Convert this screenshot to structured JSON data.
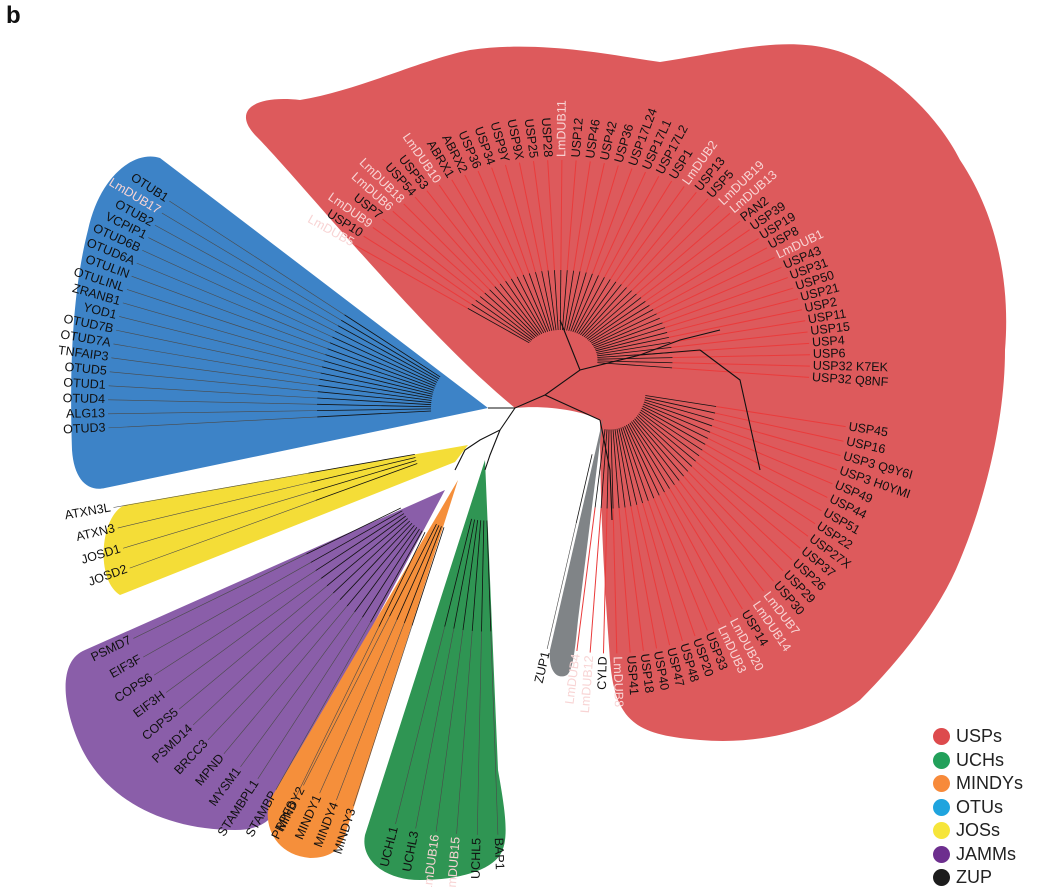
{
  "panel_label": "b",
  "colors": {
    "USPs": "#dd5a5c",
    "UCHs": "#2f9553",
    "MINDYs": "#f58f3b",
    "OTUs": "#3d83c7",
    "JOSs": "#f4dd37",
    "JAMMs": "#8a5ea9",
    "ZUP": "#808487",
    "lmdub_label": "#f8d4d4"
  },
  "legend": [
    {
      "name": "USPs",
      "color": "#dd4b4d"
    },
    {
      "name": "UCHs",
      "color": "#22a05a"
    },
    {
      "name": "MINDYs",
      "color": "#f78a3a"
    },
    {
      "name": "OTUs",
      "color": "#1fa4de"
    },
    {
      "name": "JOSs",
      "color": "#f6e53a"
    },
    {
      "name": "JAMMs",
      "color": "#6d2f8e"
    },
    {
      "name": "ZUP",
      "color": "#1c1c1c"
    }
  ],
  "groups": {
    "USPs_upper": [
      "LmDUB5",
      "USP10",
      "LmDUB9",
      "USP7",
      "LmDUB6",
      "LmDUB18",
      "USP54",
      "USP53",
      "LmDUB10",
      "ABRX1",
      "ABRX2",
      "USP36",
      "USP34",
      "USP9Y",
      "USP9X",
      "USP25",
      "USP28",
      "LmDUB11",
      "USP12",
      "USP46",
      "USP42",
      "USP36",
      "USP17L24",
      "USP17L1",
      "USP17L2",
      "USP1",
      "LmDUB2",
      "USP13",
      "USP5",
      "LmDUB19",
      "LmDUB13",
      "PAN2",
      "USP39",
      "USP19",
      "USP8",
      "LmDUB1",
      "USP43",
      "USP31",
      "USP50",
      "USP21",
      "USP2",
      "USP11",
      "USP15",
      "USP4",
      "USP6",
      "USP32 K7EK",
      "USP32 Q8NF"
    ],
    "USPs_lower": [
      "USP45",
      "USP16",
      "USP3 Q9Y6I",
      "USP3 H0YMI",
      "USP49",
      "USP44",
      "USP51",
      "USP22",
      "USP27X",
      "USP37",
      "USP26",
      "USP29",
      "USP30",
      "LmDUB7",
      "LmDUB14",
      "USP14",
      "LmDUB20",
      "LmDUB3",
      "USP33",
      "USP20",
      "USP48",
      "USP47",
      "USP40",
      "USP18",
      "USP41",
      "LmDUB8",
      "CYLD",
      "LmDUB12",
      "LmDUB4"
    ],
    "OTUs": [
      "OTUB1",
      "LmDUB17",
      "OTUB2",
      "VCPIP1",
      "OTUD6B",
      "OTUD6A",
      "OTULIN",
      "OTULINL",
      "ZRANB1",
      "YOD1",
      "OTUD7B",
      "OTUD7A",
      "TNFAIP3",
      "OTUD5",
      "OTUD1",
      "OTUD4",
      "ALG13",
      "OTUD3"
    ],
    "JOSs": [
      "ATXN3L",
      "ATXN3",
      "JOSD1",
      "JOSD2"
    ],
    "JAMMs": [
      "PSMD7",
      "EIF3F",
      "COPS6",
      "EIF3H",
      "COPS5",
      "PSMD14",
      "BRCC3",
      "MPND",
      "MYSM1",
      "STAMBPL1",
      "STAMBP",
      "PRPF8"
    ],
    "MINDYs": [
      "MINDY2",
      "MINDY1",
      "MINDY4",
      "MINDY3"
    ],
    "UCHs": [
      "UCHL1",
      "UCHL3",
      "LmDUB16",
      "LmDUB15",
      "UCHL5",
      "BAP1"
    ],
    "ZUP": [
      "ZUP1"
    ]
  }
}
